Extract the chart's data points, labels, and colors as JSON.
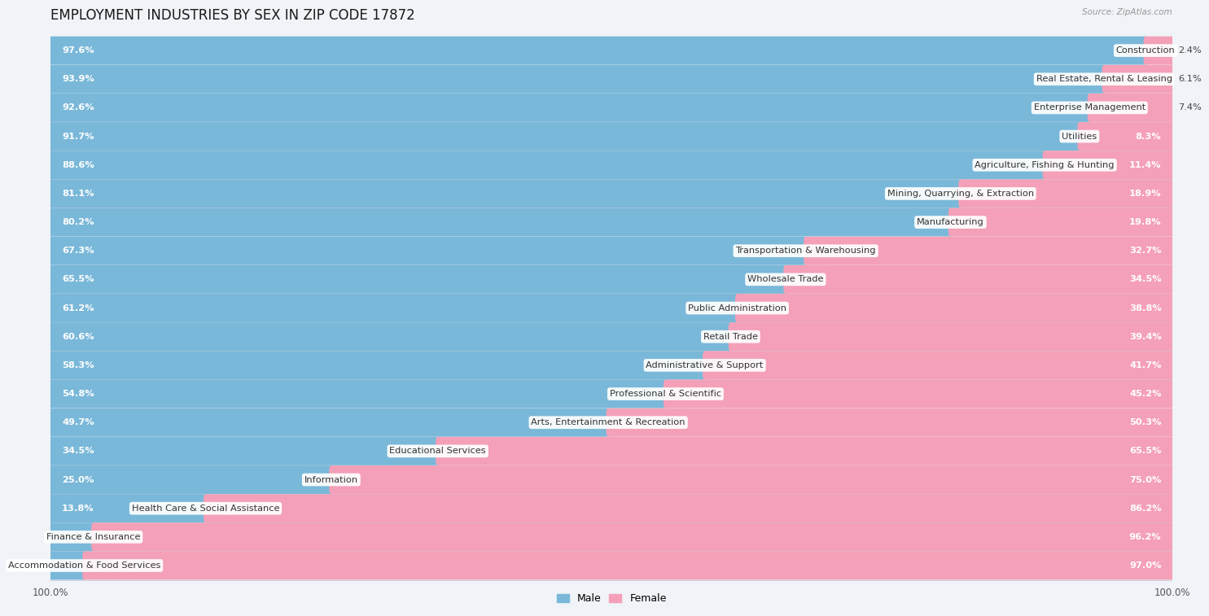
{
  "title": "EMPLOYMENT INDUSTRIES BY SEX IN ZIP CODE 17872",
  "source": "Source: ZipAtlas.com",
  "categories": [
    "Construction",
    "Real Estate, Rental & Leasing",
    "Enterprise Management",
    "Utilities",
    "Agriculture, Fishing & Hunting",
    "Mining, Quarrying, & Extraction",
    "Manufacturing",
    "Transportation & Warehousing",
    "Wholesale Trade",
    "Public Administration",
    "Retail Trade",
    "Administrative & Support",
    "Professional & Scientific",
    "Arts, Entertainment & Recreation",
    "Educational Services",
    "Information",
    "Health Care & Social Assistance",
    "Finance & Insurance",
    "Accommodation & Food Services"
  ],
  "male_pct": [
    97.6,
    93.9,
    92.6,
    91.7,
    88.6,
    81.1,
    80.2,
    67.3,
    65.5,
    61.2,
    60.6,
    58.3,
    54.8,
    49.7,
    34.5,
    25.0,
    13.8,
    3.8,
    3.0
  ],
  "female_pct": [
    2.4,
    6.1,
    7.4,
    8.3,
    11.4,
    18.9,
    19.8,
    32.7,
    34.5,
    38.8,
    39.4,
    41.7,
    45.2,
    50.3,
    65.5,
    75.0,
    86.2,
    96.2,
    97.0
  ],
  "male_color": "#7ab8d9",
  "female_color": "#f4a0b8",
  "bg_color": "#f0f3f7",
  "row_even_color": "#e8ecf2",
  "row_odd_color": "#f5f7fa",
  "title_fontsize": 12,
  "label_fontsize": 8.2,
  "bar_height": 0.62,
  "legend_male": "Male",
  "legend_female": "Female"
}
